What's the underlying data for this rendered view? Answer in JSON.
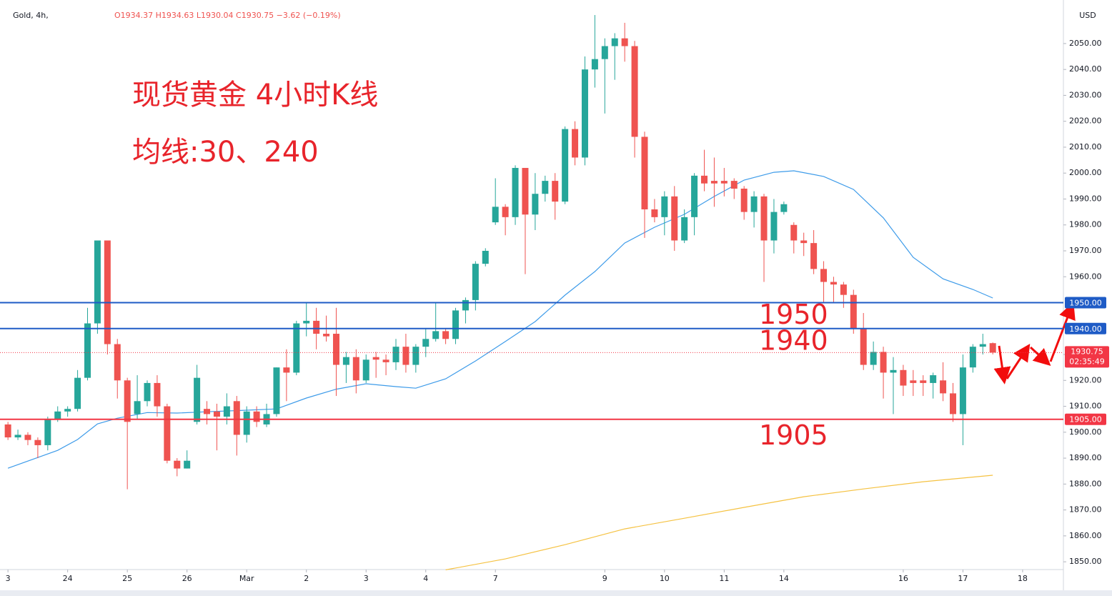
{
  "chart_data": {
    "type": "candlestick",
    "symbol": "Gold, 4h,",
    "ohlc_text": "O1934.37 H1934.63 L1930.04 C1930.75 −3.62 (−0.19%)",
    "title": "现货黄金 4小时K线",
    "subtitle": "均线:30、240",
    "currency": "USD",
    "up_color": "#26a69a",
    "down_color": "#ef5350",
    "xlim": [
      -0.8,
      106.1
    ],
    "ylim": [
      1847,
      2066.8
    ],
    "xticks": [
      {
        "value": 0,
        "label": "3"
      },
      {
        "value": 6,
        "label": "24"
      },
      {
        "value": 12,
        "label": "25"
      },
      {
        "value": 18,
        "label": "26"
      },
      {
        "value": 24,
        "label": "Mar"
      },
      {
        "value": 30,
        "label": "2"
      },
      {
        "value": 36,
        "label": "3"
      },
      {
        "value": 42,
        "label": "4"
      },
      {
        "value": 49,
        "label": "7"
      },
      {
        "value": 60,
        "label": "9"
      },
      {
        "value": 66,
        "label": "10"
      },
      {
        "value": 72,
        "label": "11"
      },
      {
        "value": 78,
        "label": "14"
      },
      {
        "value": 90,
        "label": "16"
      },
      {
        "value": 96,
        "label": "17"
      },
      {
        "value": 102,
        "label": "18"
      }
    ],
    "yticks": [
      {
        "value": 1850,
        "label": "1850.00"
      },
      {
        "value": 1860,
        "label": "1860.00"
      },
      {
        "value": 1870,
        "label": "1870.00"
      },
      {
        "value": 1880,
        "label": "1880.00"
      },
      {
        "value": 1890,
        "label": "1890.00"
      },
      {
        "value": 1900,
        "label": "1900.00"
      },
      {
        "value": 1910,
        "label": "1910.00"
      },
      {
        "value": 1920,
        "label": "1920.00"
      },
      {
        "value": 1930,
        "label": "1930.00"
      },
      {
        "value": 1960,
        "label": "1960.00"
      },
      {
        "value": 1970,
        "label": "1970.00"
      },
      {
        "value": 1980,
        "label": "1980.00"
      },
      {
        "value": 1990,
        "label": "1990.00"
      },
      {
        "value": 2000,
        "label": "2000.00"
      },
      {
        "value": 2010,
        "label": "2010.00"
      },
      {
        "value": 2020,
        "label": "2020.00"
      },
      {
        "value": 2030,
        "label": "2030.00"
      },
      {
        "value": 2040,
        "label": "2040.00"
      },
      {
        "value": 2050,
        "label": "2050.00"
      }
    ],
    "x": [
      0,
      1,
      2,
      3,
      4,
      5,
      6,
      7,
      8,
      9,
      10,
      11,
      12,
      13,
      14,
      15,
      16,
      17,
      18,
      19,
      20,
      21,
      22,
      23,
      24,
      25,
      26,
      27,
      28,
      29,
      30,
      31,
      32,
      33,
      34,
      35,
      36,
      37,
      38,
      39,
      40,
      41,
      42,
      43,
      44,
      45,
      46,
      47,
      48,
      49,
      50,
      51,
      52,
      53,
      54,
      55,
      56,
      57,
      58,
      59,
      60,
      61,
      62,
      63,
      64,
      65,
      66,
      67,
      68,
      69,
      70,
      71,
      72,
      73,
      74,
      75,
      76,
      77,
      78,
      79,
      80,
      81,
      82,
      83,
      84,
      85,
      86,
      87,
      88,
      89,
      90,
      91,
      92,
      93,
      94,
      95,
      96,
      97,
      98,
      99
    ],
    "open": [
      1903,
      1898,
      1899,
      1897,
      1895,
      1905,
      1908,
      1909,
      1921,
      1942,
      1974,
      1934,
      1920,
      1907,
      1912,
      1919,
      1910,
      1889,
      1886,
      1904,
      1909,
      1908,
      1906,
      1912,
      1899,
      1908,
      1903,
      1907,
      1925,
      1923,
      1942,
      1943,
      1938,
      1938,
      1926,
      1929,
      1920,
      1929,
      1928,
      1927,
      1933,
      1926,
      1933,
      1936,
      1939,
      1936,
      1947,
      1951,
      1965,
      1981,
      1987,
      1983,
      2002,
      1984,
      1992,
      1997,
      1989,
      2017,
      2006,
      2040,
      2044,
      2049,
      2052,
      2049,
      2014,
      1986,
      1983,
      1991,
      1974,
      1983,
      1999,
      1997,
      1997,
      1997,
      1994,
      1985,
      1991,
      1974,
      1985,
      1980,
      1974,
      1973,
      1963,
      1958,
      1957,
      1953,
      1940,
      1926,
      1931,
      1923,
      1924,
      1920,
      1920,
      1919,
      1920,
      1915,
      1907,
      1925,
      1933,
      1934.37
    ],
    "high": [
      1904,
      1901,
      1900,
      1898,
      1906,
      1910,
      1910,
      1924,
      1948,
      1974,
      1974,
      1936,
      1921,
      1922,
      1920,
      1922,
      1911,
      1890,
      1893,
      1926,
      1912,
      1911,
      1915,
      1914,
      1910,
      1910,
      1911,
      1925,
      1932,
      1943,
      1950,
      1948,
      1945,
      1948,
      1931,
      1932,
      1930,
      1931,
      1930,
      1936,
      1938,
      1934,
      1940,
      1950,
      1940,
      1948,
      1952,
      1966,
      1971,
      1998,
      1988,
      2003,
      2002,
      2000,
      1999,
      2000,
      2018,
      2020,
      2045,
      2061,
      2052,
      2054,
      2058,
      2051,
      2016,
      1990,
      1993,
      1995,
      1986,
      2000,
      2009,
      2006,
      2002,
      1998,
      1995,
      1993,
      1992,
      1990,
      1989,
      1981,
      1977,
      1978,
      1966,
      1960,
      1958,
      1955,
      1946,
      1935,
      1933,
      1929,
      1926,
      1924,
      1922,
      1923,
      1927,
      1919,
      1930,
      1934,
      1938,
      1934.63
    ],
    "low": [
      1897,
      1897,
      1895,
      1890,
      1893,
      1904,
      1906,
      1908,
      1920,
      1938,
      1930,
      1913,
      1878,
      1905,
      1910,
      1906,
      1888,
      1883,
      1886,
      1903,
      1903,
      1893,
      1903,
      1891,
      1896,
      1902,
      1902,
      1906,
      1912,
      1922,
      1937,
      1932,
      1935,
      1914,
      1919,
      1915,
      1919,
      1921,
      1922,
      1924,
      1923,
      1923,
      1929,
      1935,
      1934,
      1934,
      1942,
      1947,
      1964,
      1980,
      1976,
      1980,
      1961,
      1978,
      1989,
      1982,
      1988,
      2003,
      2003,
      2033,
      2023,
      2036,
      2043,
      2006,
      1975,
      1981,
      1976,
      1970,
      1973,
      1976,
      1993,
      1987,
      1991,
      1990,
      1982,
      1979,
      1958,
      1969,
      1984,
      1969,
      1968,
      1961,
      1950,
      1950,
      1948,
      1938,
      1924,
      1924,
      1913,
      1907,
      1914,
      1914,
      1914,
      1913,
      1912,
      1904,
      1895,
      1923,
      1930,
      1930.04
    ],
    "close": [
      1898,
      1899,
      1897,
      1895,
      1905,
      1908,
      1909,
      1921,
      1942,
      1974,
      1934,
      1920,
      1904,
      1912,
      1919,
      1910,
      1889,
      1886,
      1889,
      1921,
      1907,
      1906,
      1910,
      1899,
      1908,
      1904,
      1907,
      1925,
      1923,
      1942,
      1943,
      1938,
      1937,
      1926,
      1929,
      1920,
      1928,
      1928,
      1927,
      1933,
      1926,
      1933,
      1936,
      1939,
      1936,
      1947,
      1951,
      1965,
      1970,
      1987,
      1983,
      2002,
      1984,
      1992,
      1997,
      1989,
      2017,
      2006,
      2040,
      2044,
      2049,
      2052,
      2049,
      2014,
      1986,
      1983,
      1991,
      1974,
      1983,
      1999,
      1996,
      1996,
      1996,
      1994,
      1985,
      1991,
      1974,
      1985,
      1988,
      1974,
      1973,
      1963,
      1958,
      1957,
      1953,
      1940,
      1926,
      1931,
      1923,
      1924,
      1918,
      1919,
      1919,
      1922,
      1915,
      1907,
      1925,
      1933,
      1934,
      1930.75
    ],
    "moving_averages": [
      {
        "color": "#3d9be9",
        "x": [
          0,
          5,
          7,
          9,
          11,
          14,
          17,
          20,
          24,
          27,
          30,
          33,
          36,
          39,
          41,
          44,
          47,
          50,
          53,
          56,
          59,
          62,
          65,
          68,
          71,
          74,
          77,
          79,
          82,
          85,
          88,
          91,
          94,
          97,
          99
        ],
        "values": [
          1886.1,
          1893.0,
          1897.2,
          1903.2,
          1905.4,
          1907.6,
          1907.4,
          1907.9,
          1908.5,
          1909.0,
          1913.2,
          1916.6,
          1918.7,
          1917.6,
          1917.0,
          1920.6,
          1927.5,
          1935.0,
          1942.7,
          1952.9,
          1962.0,
          1973.0,
          1979.1,
          1984.1,
          1991.0,
          1997.3,
          2000.3,
          2000.9,
          1998.7,
          1993.7,
          1982.7,
          1967.5,
          1959.2,
          1955.1,
          1951.8
        ]
      },
      {
        "color": "#f5c242",
        "x": [
          44,
          50,
          56,
          62,
          68,
          74,
          80,
          86,
          92,
          99
        ],
        "values": [
          1846.9,
          1851.1,
          1856.6,
          1862.7,
          1866.8,
          1871.0,
          1875.1,
          1878.1,
          1880.9,
          1883.4
        ]
      }
    ],
    "levels": [
      {
        "value": 1950,
        "label": "1950.00",
        "color": "#1e5bc6"
      },
      {
        "value": 1940,
        "label": "1940.00",
        "color": "#1e5bc6"
      },
      {
        "value": 1905,
        "label": "1905.00",
        "color": "#f23645"
      }
    ],
    "current_price": {
      "value": 1930.75,
      "label": "1930.75",
      "countdown": "02:35:49",
      "color": "#f23645"
    }
  }
}
